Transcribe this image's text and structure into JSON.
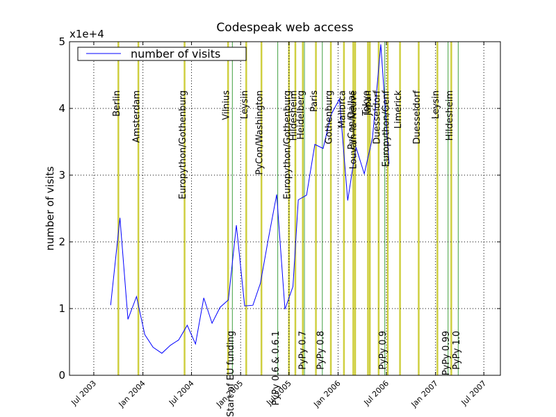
{
  "chart_data": {
    "type": "line",
    "title": "Codespeak web access",
    "ylabel": "number of visits",
    "xlabel": "",
    "y_offset_label": "x1e+4",
    "ylim": [
      0,
      5
    ],
    "y_ticks": [
      "0",
      "1",
      "2",
      "3",
      "4",
      "5"
    ],
    "xlim": [
      "2003-04-01",
      "2007-09-01"
    ],
    "x_ticks": [
      {
        "label": "Jul 2003",
        "date": "2003-07-01"
      },
      {
        "label": "Jan 2004",
        "date": "2004-01-01"
      },
      {
        "label": "Jul 2004",
        "date": "2004-07-01"
      },
      {
        "label": "Jan 2005",
        "date": "2005-01-01"
      },
      {
        "label": "Jul 2005",
        "date": "2005-07-01"
      },
      {
        "label": "Jan 2006",
        "date": "2006-01-01"
      },
      {
        "label": "Jul 2006",
        "date": "2006-07-01"
      },
      {
        "label": "Jan 2007",
        "date": "2007-01-01"
      },
      {
        "label": "Jul 2007",
        "date": "2007-07-01"
      }
    ],
    "grid": true,
    "legend": {
      "placement": "top-left",
      "entries": [
        "number of visits"
      ]
    },
    "series": [
      {
        "name": "number of visits",
        "color": "#0000ff",
        "points": [
          {
            "x": "2003-09-02",
            "y": 1.05
          },
          {
            "x": "2003-10-07",
            "y": 2.36
          },
          {
            "x": "2003-11-06",
            "y": 0.84
          },
          {
            "x": "2003-12-08",
            "y": 1.18
          },
          {
            "x": "2004-01-08",
            "y": 0.61
          },
          {
            "x": "2004-02-08",
            "y": 0.42
          },
          {
            "x": "2004-03-12",
            "y": 0.33
          },
          {
            "x": "2004-04-13",
            "y": 0.45
          },
          {
            "x": "2004-05-14",
            "y": 0.53
          },
          {
            "x": "2004-06-15",
            "y": 0.75
          },
          {
            "x": "2004-07-16",
            "y": 0.47
          },
          {
            "x": "2004-08-16",
            "y": 1.16
          },
          {
            "x": "2004-09-16",
            "y": 0.78
          },
          {
            "x": "2004-10-16",
            "y": 1.02
          },
          {
            "x": "2004-11-16",
            "y": 1.13
          },
          {
            "x": "2004-12-16",
            "y": 2.25
          },
          {
            "x": "2005-01-16",
            "y": 1.04
          },
          {
            "x": "2005-02-16",
            "y": 1.05
          },
          {
            "x": "2005-03-16",
            "y": 1.38
          },
          {
            "x": "2005-04-15",
            "y": 2.05
          },
          {
            "x": "2005-05-16",
            "y": 2.71
          },
          {
            "x": "2005-06-16",
            "y": 0.99
          },
          {
            "x": "2005-07-16",
            "y": 1.33
          },
          {
            "x": "2005-08-05",
            "y": 2.63
          },
          {
            "x": "2005-09-05",
            "y": 2.7
          },
          {
            "x": "2005-10-06",
            "y": 3.46
          },
          {
            "x": "2005-11-06",
            "y": 3.4
          },
          {
            "x": "2005-12-06",
            "y": 3.91
          },
          {
            "x": "2006-01-06",
            "y": 4.14
          },
          {
            "x": "2006-02-06",
            "y": 2.62
          },
          {
            "x": "2006-03-09",
            "y": 3.42
          },
          {
            "x": "2006-04-09",
            "y": 3.02
          },
          {
            "x": "2006-05-10",
            "y": 3.56
          },
          {
            "x": "2006-06-10",
            "y": 4.96
          },
          {
            "x": "2006-07-11",
            "y": 3.17
          }
        ]
      }
    ],
    "event_lines": [
      {
        "label": "Berlin",
        "date": "2003-10-01",
        "kind": "sprint",
        "color": "#bfbf00"
      },
      {
        "label": "Amsterdam",
        "date": "2003-12-15",
        "kind": "sprint",
        "color": "#bfbf00"
      },
      {
        "label": "Europython/Gothenburg",
        "date": "2004-06-05",
        "kind": "sprint",
        "color": "#bfbf00"
      },
      {
        "label": "Vilnius",
        "date": "2004-11-15",
        "kind": "sprint",
        "color": "#bfbf00"
      },
      {
        "label": "Start of EU funding",
        "date": "2004-12-01",
        "kind": "release",
        "color": "#008000"
      },
      {
        "label": "Leysin",
        "date": "2005-01-22",
        "kind": "sprint",
        "color": "#bfbf00"
      },
      {
        "label": "PyCon/Washington",
        "date": "2005-03-20",
        "kind": "sprint",
        "color": "#bfbf00"
      },
      {
        "label": "PyPy 0.6 & 0.6.1",
        "date": "2005-05-20",
        "kind": "release",
        "color": "#008000"
      },
      {
        "label": "Europython/Gothenburg",
        "date": "2005-07-01",
        "kind": "sprint",
        "color": "#bfbf00"
      },
      {
        "label": "Hildesheim",
        "date": "2005-07-25",
        "kind": "sprint",
        "color": "#bfbf00"
      },
      {
        "label": "Heidelberg",
        "date": "2005-08-22",
        "kind": "sprint",
        "color": "#bfbf00"
      },
      {
        "label": "PyPy 0.7",
        "date": "2005-08-28",
        "kind": "release",
        "color": "#008000"
      },
      {
        "label": "Paris",
        "date": "2005-10-10",
        "kind": "sprint",
        "color": "#bfbf00"
      },
      {
        "label": "PyPy 0.8",
        "date": "2005-11-03",
        "kind": "release",
        "color": "#008000"
      },
      {
        "label": "Gothenburg",
        "date": "2005-12-05",
        "kind": "sprint",
        "color": "#bfbf00"
      },
      {
        "label": "Mallorca",
        "date": "2006-01-23",
        "kind": "sprint",
        "color": "#bfbf00"
      },
      {
        "label": "PyCon/Dallas",
        "date": "2006-02-27",
        "kind": "sprint",
        "color": "#bfbf00"
      },
      {
        "label": "Louvain-la-Neuve",
        "date": "2006-03-06",
        "kind": "sprint",
        "color": "#bfbf00"
      },
      {
        "label": "Tokyo",
        "date": "2006-04-23",
        "kind": "sprint",
        "color": "#bfbf00"
      },
      {
        "label": "Japan",
        "date": "2006-04-30",
        "kind": "sprint",
        "color": "#bfbf00"
      },
      {
        "label": "Duesseldorf",
        "date": "2006-06-02",
        "kind": "sprint",
        "color": "#bfbf00"
      },
      {
        "label": "PyPy 0.9",
        "date": "2006-06-25",
        "kind": "release",
        "color": "#008000"
      },
      {
        "label": "Europython/Genf",
        "date": "2006-07-06",
        "kind": "sprint",
        "color": "#bfbf00"
      },
      {
        "label": "Limerick",
        "date": "2006-08-21",
        "kind": "sprint",
        "color": "#bfbf00"
      },
      {
        "label": "Duesseldorf",
        "date": "2006-10-30",
        "kind": "sprint",
        "color": "#bfbf00"
      },
      {
        "label": "Leysin",
        "date": "2007-01-08",
        "kind": "sprint",
        "color": "#bfbf00"
      },
      {
        "label": "PyPy 0.99",
        "date": "2007-02-17",
        "kind": "release",
        "color": "#008000"
      },
      {
        "label": "Hildesheim",
        "date": "2007-03-01",
        "kind": "sprint",
        "color": "#bfbf00"
      },
      {
        "label": "PyPy 1.0",
        "date": "2007-03-27",
        "kind": "release",
        "color": "#008000"
      }
    ]
  }
}
